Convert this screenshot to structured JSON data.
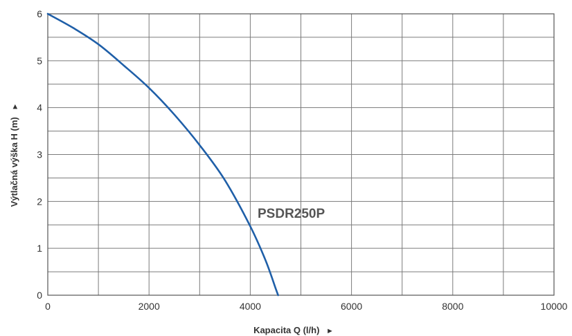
{
  "chart_data": {
    "type": "line",
    "title": "",
    "xlabel": "Kapacita Q (l/h)",
    "ylabel": "Výtlačná výška H (m)",
    "xlabel_arrow": "►",
    "ylabel_arrow": "►",
    "xlim": [
      0,
      10000
    ],
    "ylim": [
      0,
      6
    ],
    "x_ticks": [
      0,
      2000,
      4000,
      6000,
      8000,
      10000
    ],
    "y_ticks": [
      0,
      1,
      2,
      3,
      4,
      5,
      6
    ],
    "x_tick_labels": [
      "0",
      "2000",
      "4000",
      "6000",
      "8000",
      "10000"
    ],
    "y_tick_labels": [
      "0",
      "1",
      "2",
      "3",
      "4",
      "5",
      "6"
    ],
    "grid": true,
    "series": [
      {
        "name": "PSDR250P",
        "color": "#1f5fa8",
        "x": [
          0,
          500,
          1000,
          1500,
          2000,
          2500,
          3000,
          3500,
          4000,
          4300,
          4500,
          4550
        ],
        "y": [
          6.0,
          5.7,
          5.35,
          4.9,
          4.42,
          3.85,
          3.2,
          2.45,
          1.47,
          0.75,
          0.15,
          0.0
        ]
      }
    ]
  }
}
